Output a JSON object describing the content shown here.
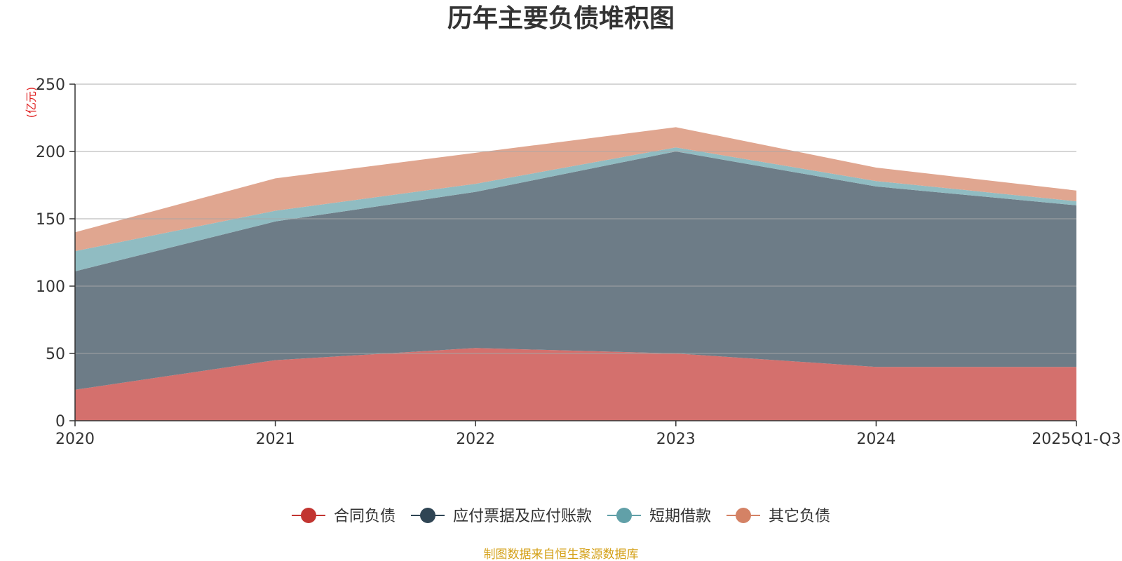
{
  "chart_data": {
    "type": "area",
    "stacked": true,
    "title": "历年主要负债堆积图",
    "unit_label": "(亿元)",
    "categories": [
      "2020",
      "2021",
      "2022",
      "2023",
      "2024",
      "2025Q1-Q3"
    ],
    "ylim": [
      0,
      250
    ],
    "yticks": [
      0,
      50,
      100,
      150,
      200,
      250
    ],
    "grid": true,
    "legend_position": "bottom-center",
    "series": [
      {
        "name": "合同负债",
        "color": "#c23531",
        "fill": "#d4706d",
        "values": [
          23,
          45,
          54,
          50,
          40,
          40
        ]
      },
      {
        "name": "应付票据及应付账款",
        "color": "#2f4554",
        "fill": "#6d7c87",
        "values": [
          88,
          103,
          116,
          150,
          134,
          120
        ]
      },
      {
        "name": "短期借款",
        "color": "#61a0a8",
        "fill": "#90bcc2",
        "values": [
          15,
          8,
          6,
          3,
          4,
          3
        ]
      },
      {
        "name": "其它负债",
        "color": "#d48265",
        "fill": "#e0a690",
        "values": [
          14,
          24,
          23,
          15,
          10,
          8
        ]
      }
    ],
    "source": "制图数据来自恒生聚源数据库"
  }
}
